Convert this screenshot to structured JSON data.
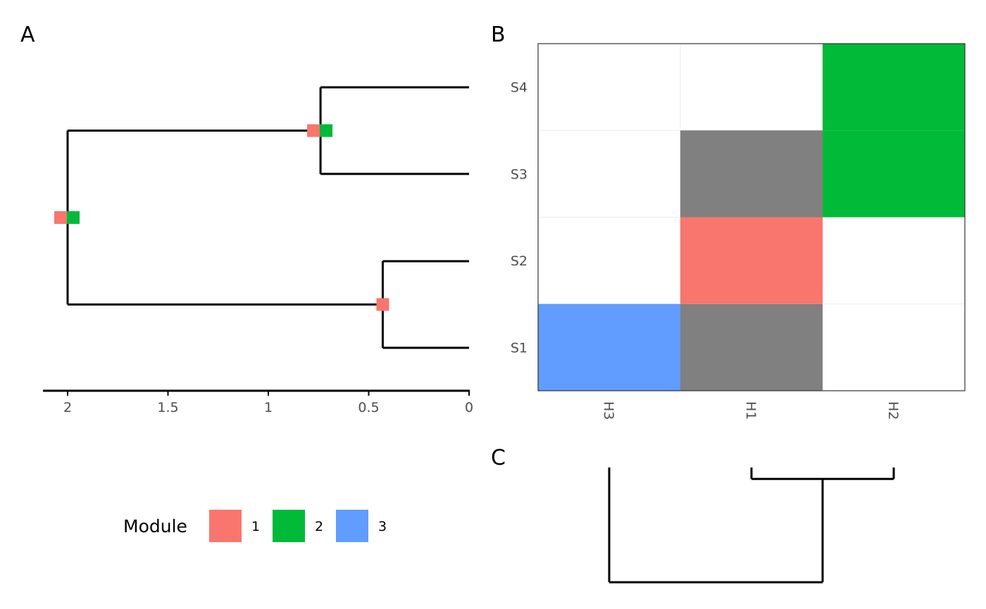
{
  "panels": {
    "a": "A",
    "b": "B",
    "c": "C"
  },
  "colors": {
    "module_1": "#F8766D",
    "module_2": "#00BA38",
    "module_3": "#619CFF",
    "other": "#808080",
    "line": "#000000"
  },
  "chart_data": [
    {
      "panel": "A",
      "type": "dendrogram",
      "x_axis": {
        "reversed": true,
        "ticks": [
          "2",
          "1.5",
          "1",
          "0.5",
          "0"
        ],
        "tick_values": [
          2,
          1.5,
          1,
          0.5,
          0
        ],
        "xlim": [
          2.12,
          0
        ]
      },
      "leaves": [
        "S4",
        "S3",
        "S2",
        "S1"
      ],
      "nodes": [
        {
          "id": "root",
          "height": 2.0,
          "children": [
            "n43",
            "n21"
          ],
          "modules": [
            1,
            2
          ]
        },
        {
          "id": "n43",
          "height": 0.74,
          "children": [
            "S4",
            "S3"
          ],
          "modules": [
            1,
            2
          ]
        },
        {
          "id": "n21",
          "height": 0.43,
          "children": [
            "S2",
            "S1"
          ],
          "modules": [
            1
          ]
        }
      ]
    },
    {
      "panel": "B",
      "type": "heatmap",
      "rows": [
        "S1",
        "S2",
        "S3",
        "S4"
      ],
      "cols": [
        "H3",
        "H1",
        "H2"
      ],
      "cells": [
        {
          "row": "S1",
          "col": "H3",
          "fill": "module_3"
        },
        {
          "row": "S1",
          "col": "H1",
          "fill": "other"
        },
        {
          "row": "S2",
          "col": "H1",
          "fill": "module_1"
        },
        {
          "row": "S3",
          "col": "H1",
          "fill": "other"
        },
        {
          "row": "S3",
          "col": "H2",
          "fill": "module_2"
        },
        {
          "row": "S4",
          "col": "H2",
          "fill": "module_2"
        }
      ]
    },
    {
      "panel": "C",
      "type": "dendrogram",
      "leaves": [
        "H3",
        "H1",
        "H2"
      ],
      "nodes": [
        {
          "id": "c_root",
          "height": 1.0,
          "children": [
            "H3",
            "c12"
          ]
        },
        {
          "id": "c12",
          "height": 0.1,
          "children": [
            "H1",
            "H2"
          ]
        }
      ]
    }
  ],
  "legend": {
    "title": "Module",
    "items": [
      {
        "label": "1",
        "color": "#F8766D"
      },
      {
        "label": "2",
        "color": "#00BA38"
      },
      {
        "label": "3",
        "color": "#619CFF"
      }
    ]
  }
}
